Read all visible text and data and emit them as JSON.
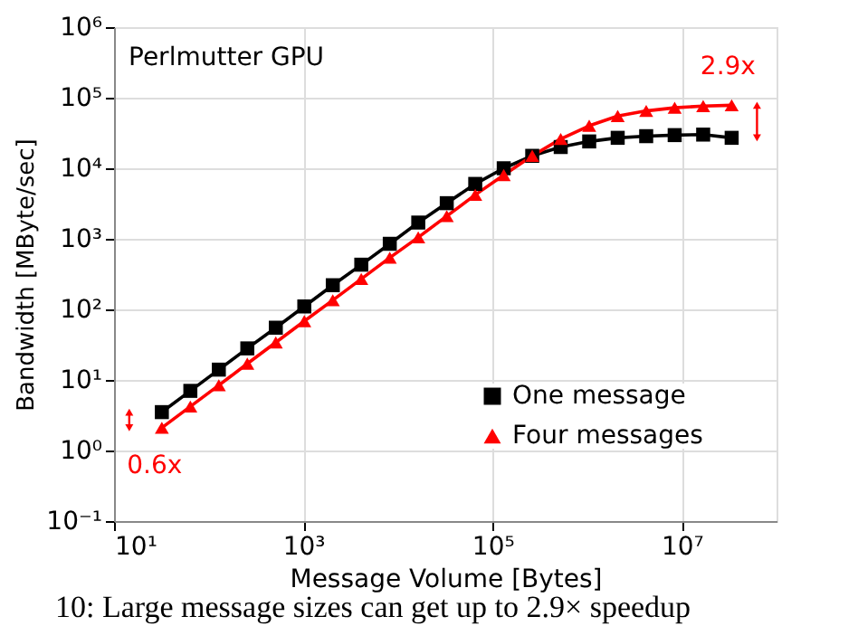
{
  "chart_data": {
    "type": "line",
    "xlabel": "Message Volume [Bytes]",
    "ylabel": "Bandwidth [MByte/sec]",
    "x": [
      32,
      64,
      128,
      256,
      512,
      1024,
      2048,
      4096,
      8192,
      16384,
      32768,
      65536,
      131072,
      262144,
      524288,
      1048576,
      2097152,
      4194304,
      8388608,
      16777216,
      33554432
    ],
    "series": [
      {
        "name": "One message",
        "color": "#000000",
        "marker": "square",
        "values": [
          3.5,
          7,
          14,
          28,
          55,
          110,
          220,
          430,
          850,
          1700,
          3200,
          6000,
          10000,
          15000,
          20000,
          24000,
          27000,
          28500,
          29500,
          30000,
          27000
        ]
      },
      {
        "name": "Four messages",
        "color": "#ff0000",
        "marker": "triangle",
        "values": [
          2.1,
          4.2,
          8.4,
          17,
          34,
          68,
          135,
          270,
          540,
          1050,
          2100,
          4200,
          8000,
          15000,
          26000,
          40000,
          55000,
          65000,
          72000,
          76000,
          78000
        ]
      }
    ],
    "log": "xy",
    "xlim": [
      10,
      100000000
    ],
    "ylim": [
      0.1,
      1000000
    ],
    "xticks": [
      {
        "value": 10,
        "label": "10¹"
      },
      {
        "value": 1000,
        "label": "10³"
      },
      {
        "value": 100000,
        "label": "10⁵"
      },
      {
        "value": 10000000,
        "label": "10⁷"
      }
    ],
    "yticks": [
      {
        "value": 0.1,
        "label": "10⁻¹"
      },
      {
        "value": 1,
        "label": "10⁰"
      },
      {
        "value": 10,
        "label": "10¹"
      },
      {
        "value": 100,
        "label": "10²"
      },
      {
        "value": 1000,
        "label": "10³"
      },
      {
        "value": 10000,
        "label": "10⁴"
      },
      {
        "value": 100000,
        "label": "10⁵"
      },
      {
        "value": 1000000,
        "label": "10⁶"
      }
    ],
    "grid": true,
    "legend": "bottom right",
    "annotations": [
      "Perlmutter GPU",
      "0.6x",
      "2.9x",
      "10: Large message sizes can get up to 2.9× speedup"
    ]
  }
}
